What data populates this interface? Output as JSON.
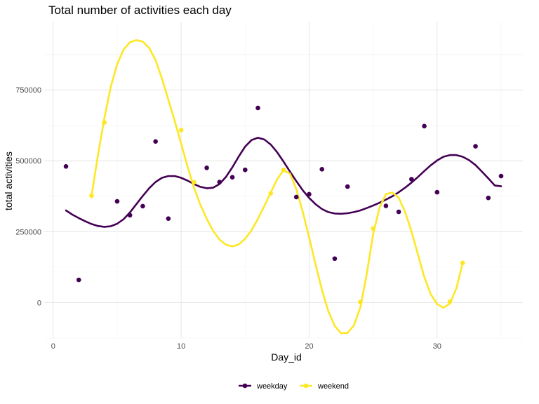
{
  "chart_data": {
    "type": "scatter",
    "title": "Total number of activities each day",
    "xlabel": "Day_id",
    "ylabel": "total activities",
    "xlim": [
      -0.7,
      36.7
    ],
    "ylim": [
      -125000,
      990000
    ],
    "x_ticks": [
      0,
      10,
      20,
      30
    ],
    "x_tick_labels": [
      "0",
      "10",
      "20",
      "30"
    ],
    "y_ticks": [
      0,
      250000,
      500000,
      750000
    ],
    "y_tick_labels": [
      "0",
      "250000",
      "500000",
      "750000"
    ],
    "grid": true,
    "legend_position": "bottom",
    "series": [
      {
        "name": "weekday",
        "color": "#440154",
        "points": [
          [
            1,
            480000
          ],
          [
            2,
            80000
          ],
          [
            5,
            357000
          ],
          [
            6,
            308000
          ],
          [
            7,
            340000
          ],
          [
            8,
            568000
          ],
          [
            9,
            296000
          ],
          [
            12,
            475000
          ],
          [
            13,
            425000
          ],
          [
            14,
            442000
          ],
          [
            15,
            468000
          ],
          [
            16,
            686000
          ],
          [
            19,
            372000
          ],
          [
            20,
            382000
          ],
          [
            21,
            470000
          ],
          [
            22,
            155000
          ],
          [
            23,
            409000
          ],
          [
            26,
            341000
          ],
          [
            27,
            320000
          ],
          [
            28,
            435000
          ],
          [
            29,
            622000
          ],
          [
            30,
            389000
          ],
          [
            33,
            551000
          ],
          [
            34,
            369000
          ],
          [
            35,
            446000
          ]
        ],
        "smooth": [
          [
            1,
            325000
          ],
          [
            1.5,
            310000
          ],
          [
            2,
            298000
          ],
          [
            2.5,
            287000
          ],
          [
            3,
            277000
          ],
          [
            3.5,
            270000
          ],
          [
            4,
            267000
          ],
          [
            4.5,
            269000
          ],
          [
            5,
            278000
          ],
          [
            5.5,
            294000
          ],
          [
            6,
            318000
          ],
          [
            6.5,
            347000
          ],
          [
            7,
            376000
          ],
          [
            7.5,
            403000
          ],
          [
            8,
            425000
          ],
          [
            8.5,
            440000
          ],
          [
            9,
            446000
          ],
          [
            9.5,
            446000
          ],
          [
            10,
            440000
          ],
          [
            10.5,
            430000
          ],
          [
            11,
            418000
          ],
          [
            11.5,
            408000
          ],
          [
            12,
            403000
          ],
          [
            12.5,
            405000
          ],
          [
            13,
            418000
          ],
          [
            13.5,
            443000
          ],
          [
            14,
            477000
          ],
          [
            14.5,
            515000
          ],
          [
            15,
            550000
          ],
          [
            15.5,
            573000
          ],
          [
            16,
            581000
          ],
          [
            16.5,
            575000
          ],
          [
            17,
            557000
          ],
          [
            17.5,
            530000
          ],
          [
            18,
            497000
          ],
          [
            18.5,
            462000
          ],
          [
            19,
            428000
          ],
          [
            19.5,
            396000
          ],
          [
            20,
            369000
          ],
          [
            20.5,
            347000
          ],
          [
            21,
            330000
          ],
          [
            21.5,
            319000
          ],
          [
            22,
            314000
          ],
          [
            22.5,
            313000
          ],
          [
            23,
            315000
          ],
          [
            23.5,
            319000
          ],
          [
            24,
            325000
          ],
          [
            24.5,
            333000
          ],
          [
            25,
            342000
          ],
          [
            25.5,
            352000
          ],
          [
            26,
            363000
          ],
          [
            26.5,
            375000
          ],
          [
            27,
            389000
          ],
          [
            27.5,
            405000
          ],
          [
            28,
            423000
          ],
          [
            28.5,
            443000
          ],
          [
            29,
            464000
          ],
          [
            29.5,
            484000
          ],
          [
            30,
            501000
          ],
          [
            30.5,
            514000
          ],
          [
            31,
            520000
          ],
          [
            31.5,
            520000
          ],
          [
            32,
            514000
          ],
          [
            32.5,
            502000
          ],
          [
            33,
            485000
          ],
          [
            33.5,
            462000
          ],
          [
            34,
            438000
          ],
          [
            34.5,
            413000
          ],
          [
            35,
            410000
          ]
        ]
      },
      {
        "name": "weekend",
        "color": "#fde725",
        "points": [
          [
            3,
            377000
          ],
          [
            4,
            635000
          ],
          [
            10,
            608000
          ],
          [
            11,
            424000
          ],
          [
            17,
            385000
          ],
          [
            18,
            468000
          ],
          [
            24,
            2000
          ],
          [
            25,
            261000
          ],
          [
            31,
            3000
          ],
          [
            32,
            140000
          ]
        ],
        "smooth": [
          [
            3,
            377000
          ],
          [
            3.5,
            520000
          ],
          [
            4,
            650000
          ],
          [
            4.5,
            760000
          ],
          [
            5,
            840000
          ],
          [
            5.5,
            892000
          ],
          [
            6,
            918000
          ],
          [
            6.5,
            925000
          ],
          [
            7,
            920000
          ],
          [
            7.5,
            898000
          ],
          [
            8,
            855000
          ],
          [
            8.5,
            790000
          ],
          [
            9,
            715000
          ],
          [
            9.5,
            640000
          ],
          [
            10,
            560000
          ],
          [
            10.5,
            480000
          ],
          [
            11,
            405000
          ],
          [
            11.5,
            345000
          ],
          [
            12,
            295000
          ],
          [
            12.5,
            253000
          ],
          [
            13,
            222000
          ],
          [
            13.5,
            204000
          ],
          [
            14,
            198000
          ],
          [
            14.5,
            205000
          ],
          [
            15,
            225000
          ],
          [
            15.5,
            255000
          ],
          [
            16,
            295000
          ],
          [
            16.5,
            340000
          ],
          [
            17,
            388000
          ],
          [
            17.5,
            435000
          ],
          [
            18,
            466000
          ],
          [
            18.5,
            455000
          ],
          [
            19,
            400000
          ],
          [
            19.5,
            320000
          ],
          [
            20,
            230000
          ],
          [
            20.5,
            135000
          ],
          [
            21,
            45000
          ],
          [
            21.5,
            -30000
          ],
          [
            22,
            -82000
          ],
          [
            22.5,
            -108000
          ],
          [
            23,
            -107000
          ],
          [
            23.5,
            -80000
          ],
          [
            24,
            -18000
          ],
          [
            24.5,
            100000
          ],
          [
            25,
            240000
          ],
          [
            25.5,
            335000
          ],
          [
            26,
            382000
          ],
          [
            26.5,
            388000
          ],
          [
            27,
            370000
          ],
          [
            27.5,
            320000
          ],
          [
            28,
            250000
          ],
          [
            28.5,
            170000
          ],
          [
            29,
            90000
          ],
          [
            29.5,
            30000
          ],
          [
            30,
            -5000
          ],
          [
            30.5,
            -18000
          ],
          [
            31,
            -3000
          ],
          [
            31.5,
            50000
          ],
          [
            32,
            140000
          ]
        ]
      }
    ]
  }
}
